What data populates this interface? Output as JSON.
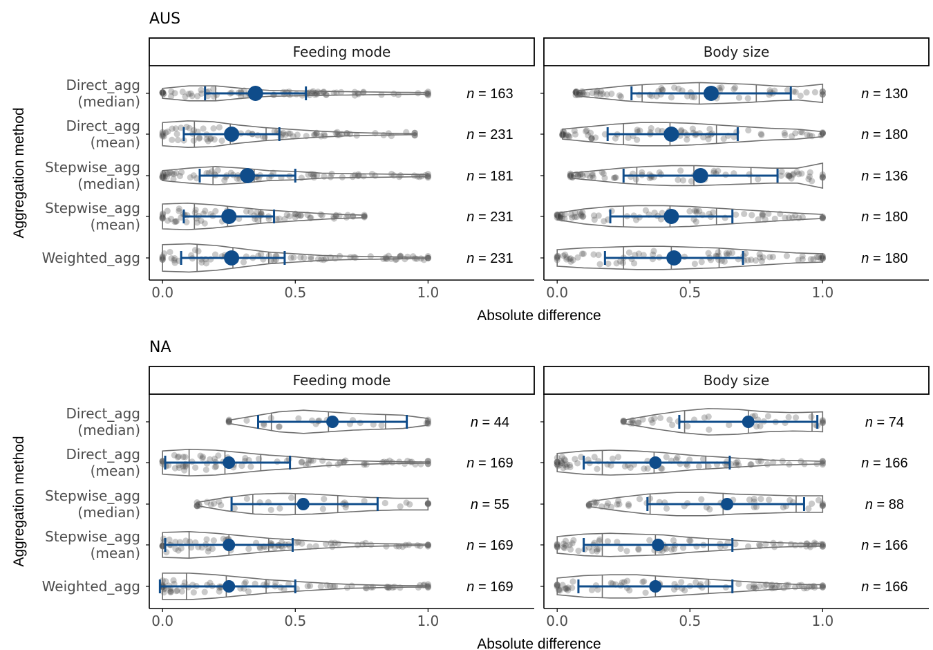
{
  "chart_data": [
    {
      "type": "violin",
      "title": "AUS",
      "xlabel": "Absolute difference",
      "ylabel": "Aggregation method",
      "xlim": [
        -0.05,
        1.4
      ],
      "xticks": [
        "0.0",
        "0.5",
        "1.0"
      ],
      "categories": [
        "Direct_agg\n(median)",
        "Direct_agg\n(mean)",
        "Stepwise_agg\n(median)",
        "Stepwise_agg\n(mean)",
        "Weighted_agg"
      ],
      "panels": [
        {
          "strip": "Feeding mode",
          "rows": [
            {
              "mean": 0.35,
              "lo": 0.16,
              "hi": 0.54,
              "min": 0.0,
              "max": 1.0,
              "n": "163",
              "q": [
                0.2,
                0.48
              ],
              "w": [
                0.3,
                0.45,
                0.45,
                0.3,
                0.18,
                0.15,
                0.12,
                0.1,
                0.08,
                0.06,
                0.05
              ]
            },
            {
              "mean": 0.26,
              "lo": 0.08,
              "hi": 0.44,
              "min": 0.0,
              "max": 0.95,
              "n": "231",
              "q": [
                0.12,
                0.39
              ],
              "w": [
                0.7,
                0.8,
                0.75,
                0.55,
                0.4,
                0.3,
                0.2,
                0.12,
                0.08,
                0.05,
                0.03
              ]
            },
            {
              "mean": 0.32,
              "lo": 0.14,
              "hi": 0.5,
              "min": 0.0,
              "max": 1.0,
              "n": "181",
              "q": [
                0.19,
                0.5
              ],
              "w": [
                0.3,
                0.45,
                0.55,
                0.45,
                0.3,
                0.25,
                0.15,
                0.12,
                0.1,
                0.08,
                0.06
              ]
            },
            {
              "mean": 0.25,
              "lo": 0.08,
              "hi": 0.42,
              "min": 0.0,
              "max": 0.76,
              "n": "231",
              "q": [
                0.12,
                0.37
              ],
              "w": [
                0.75,
                0.8,
                0.7,
                0.55,
                0.4,
                0.3,
                0.2,
                0.12,
                0.08
              ]
            },
            {
              "mean": 0.26,
              "lo": 0.07,
              "hi": 0.46,
              "min": 0.0,
              "max": 1.0,
              "n": "231",
              "q": [
                0.13,
                0.4
              ],
              "w": [
                0.8,
                0.85,
                0.75,
                0.55,
                0.35,
                0.25,
                0.15,
                0.1,
                0.08,
                0.05,
                0.04
              ]
            }
          ]
        },
        {
          "strip": "Body size",
          "rows": [
            {
              "mean": 0.58,
              "lo": 0.28,
              "hi": 0.88,
              "min": 0.07,
              "max": 1.0,
              "n": "130",
              "q": [
                0.32,
                0.75
              ],
              "w": [
                0.15,
                0.3,
                0.45,
                0.55,
                0.6,
                0.65,
                0.6,
                0.55,
                0.45,
                0.4,
                0.55
              ]
            },
            {
              "mean": 0.43,
              "lo": 0.19,
              "hi": 0.68,
              "min": 0.02,
              "max": 1.0,
              "n": "180",
              "q": [
                0.25,
                0.6
              ],
              "w": [
                0.3,
                0.45,
                0.6,
                0.7,
                0.7,
                0.65,
                0.55,
                0.45,
                0.35,
                0.3,
                0.15
              ]
            },
            {
              "mean": 0.54,
              "lo": 0.25,
              "hi": 0.83,
              "min": 0.05,
              "max": 1.0,
              "n": "136",
              "q": [
                0.3,
                0.73
              ],
              "w": [
                0.15,
                0.3,
                0.45,
                0.55,
                0.6,
                0.6,
                0.55,
                0.5,
                0.45,
                0.45,
                0.75
              ]
            },
            {
              "mean": 0.43,
              "lo": 0.2,
              "hi": 0.66,
              "min": 0.0,
              "max": 1.0,
              "n": "180",
              "q": [
                0.25,
                0.6
              ],
              "w": [
                0.2,
                0.45,
                0.6,
                0.65,
                0.65,
                0.6,
                0.5,
                0.4,
                0.3,
                0.2,
                0.12
              ]
            },
            {
              "mean": 0.44,
              "lo": 0.18,
              "hi": 0.7,
              "min": 0.0,
              "max": 1.0,
              "n": "180",
              "q": [
                0.25,
                0.61
              ],
              "w": [
                0.5,
                0.6,
                0.65,
                0.7,
                0.7,
                0.65,
                0.6,
                0.5,
                0.4,
                0.3,
                0.25
              ]
            }
          ]
        }
      ]
    },
    {
      "type": "violin",
      "title": "NA",
      "xlabel": "Absolute difference",
      "ylabel": "Aggregation method",
      "xlim": [
        -0.05,
        1.4
      ],
      "xticks": [
        "0.0",
        "0.5",
        "1.0"
      ],
      "categories": [
        "Direct_agg\n(median)",
        "Direct_agg\n(mean)",
        "Stepwise_agg\n(median)",
        "Stepwise_agg\n(mean)",
        "Weighted_agg"
      ],
      "panels": [
        {
          "strip": "Feeding mode",
          "rows": [
            {
              "mean": 0.64,
              "lo": 0.36,
              "hi": 0.92,
              "min": 0.25,
              "max": 1.0,
              "n": "44",
              "q": [
                0.41,
                0.84
              ],
              "w": [
                0.1,
                0.35,
                0.6,
                0.7,
                0.6,
                0.5,
                0.45,
                0.4,
                0.2
              ]
            },
            {
              "mean": 0.25,
              "lo": 0.01,
              "hi": 0.48,
              "min": 0.0,
              "max": 1.0,
              "n": "169",
              "q": [
                0.1,
                0.37
              ],
              "w": [
                0.7,
                0.8,
                0.75,
                0.6,
                0.45,
                0.35,
                0.2,
                0.12,
                0.08,
                0.05,
                0.04
              ]
            },
            {
              "mean": 0.53,
              "lo": 0.26,
              "hi": 0.81,
              "min": 0.13,
              "max": 1.0,
              "n": "55",
              "q": [
                0.34,
                0.66
              ],
              "w": [
                0.1,
                0.4,
                0.6,
                0.65,
                0.6,
                0.5,
                0.4,
                0.35,
                0.35
              ]
            },
            {
              "mean": 0.25,
              "lo": 0.01,
              "hi": 0.49,
              "min": 0.0,
              "max": 1.0,
              "n": "169",
              "q": [
                0.1,
                0.4
              ],
              "w": [
                0.75,
                0.8,
                0.7,
                0.55,
                0.4,
                0.3,
                0.2,
                0.12,
                0.08,
                0.05,
                0.04
              ]
            },
            {
              "mean": 0.25,
              "lo": -0.01,
              "hi": 0.5,
              "min": 0.0,
              "max": 1.0,
              "n": "169",
              "q": [
                0.09,
                0.39
              ],
              "w": [
                0.8,
                0.8,
                0.7,
                0.55,
                0.4,
                0.3,
                0.2,
                0.12,
                0.08,
                0.05,
                0.04
              ]
            }
          ]
        },
        {
          "strip": "Body size",
          "rows": [
            {
              "mean": 0.72,
              "lo": 0.46,
              "hi": 0.98,
              "min": 0.25,
              "max": 1.0,
              "n": "74",
              "q": [
                0.48,
                0.96
              ],
              "w": [
                0.1,
                0.4,
                0.65,
                0.8,
                0.75,
                0.6,
                0.55,
                0.6
              ]
            },
            {
              "mean": 0.37,
              "lo": 0.1,
              "hi": 0.65,
              "min": 0.0,
              "max": 1.0,
              "n": "166",
              "q": [
                0.17,
                0.56
              ],
              "w": [
                0.55,
                0.7,
                0.75,
                0.7,
                0.6,
                0.45,
                0.35,
                0.25,
                0.15,
                0.12,
                0.08
              ]
            },
            {
              "mean": 0.64,
              "lo": 0.34,
              "hi": 0.93,
              "min": 0.12,
              "max": 1.0,
              "n": "88",
              "q": [
                0.35,
                0.9
              ],
              "w": [
                0.15,
                0.4,
                0.6,
                0.7,
                0.7,
                0.6,
                0.55,
                0.5,
                0.5
              ]
            },
            {
              "mean": 0.38,
              "lo": 0.1,
              "hi": 0.66,
              "min": 0.0,
              "max": 1.0,
              "n": "166",
              "q": [
                0.17,
                0.57
              ],
              "w": [
                0.5,
                0.65,
                0.7,
                0.65,
                0.6,
                0.45,
                0.35,
                0.25,
                0.15,
                0.1,
                0.08
              ]
            },
            {
              "mean": 0.37,
              "lo": 0.08,
              "hi": 0.66,
              "min": 0.0,
              "max": 1.0,
              "n": "166",
              "q": [
                0.17,
                0.57
              ],
              "w": [
                0.5,
                0.65,
                0.7,
                0.7,
                0.6,
                0.5,
                0.4,
                0.3,
                0.2,
                0.12,
                0.1
              ]
            }
          ]
        }
      ]
    }
  ],
  "colors": {
    "point": "#0f4c8a",
    "violin": "#6e6e6e",
    "jitter": "#404040",
    "axis": "#000000",
    "label": "#4d4d4d"
  }
}
